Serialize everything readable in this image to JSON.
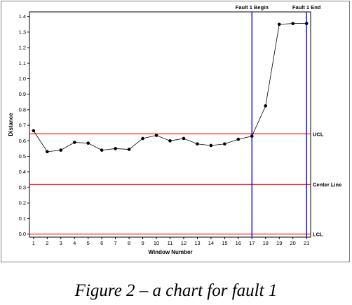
{
  "caption": "Figure 2 – a chart for fault 1",
  "chart_data": {
    "type": "line",
    "title": "",
    "xlabel": "Window Number",
    "ylabel": "Distance",
    "x": [
      1,
      2,
      3,
      4,
      5,
      6,
      7,
      8,
      9,
      10,
      11,
      12,
      13,
      14,
      15,
      16,
      17,
      18,
      19,
      20,
      21
    ],
    "series": [
      {
        "values": [
          0.665,
          0.53,
          0.54,
          0.59,
          0.585,
          0.54,
          0.55,
          0.545,
          0.615,
          0.635,
          0.6,
          0.615,
          0.58,
          0.57,
          0.58,
          0.61,
          0.63,
          0.825,
          1.35,
          1.355,
          1.355
        ]
      }
    ],
    "xlim": [
      0.7,
      21.3
    ],
    "ylim": [
      -0.02,
      1.43
    ],
    "yticks": [
      "0.0",
      "0.1",
      "0.2",
      "0.3",
      "0.4",
      "0.5",
      "0.6",
      "0.7",
      "0.8",
      "0.9",
      "1.0",
      "1.1",
      "1.2",
      "1.3",
      "1.4"
    ],
    "xticks": [
      "1",
      "2",
      "3",
      "4",
      "5",
      "6",
      "7",
      "8",
      "9",
      "10",
      "11",
      "12",
      "13",
      "14",
      "15",
      "16",
      "17",
      "18",
      "19",
      "20",
      "21"
    ],
    "horizontal_lines": [
      {
        "label": "UCL",
        "value": 0.645,
        "color": "#ff0000"
      },
      {
        "label": "Center Line",
        "value": 0.32,
        "color": "#ff0000"
      },
      {
        "label": "LCL",
        "value": 0.0,
        "color": "#ff0000"
      }
    ],
    "vertical_lines": [
      {
        "label": "Fault 1 Begin",
        "x": 17,
        "color": "#0000ff"
      },
      {
        "label": "Fault 1 End",
        "x": 21,
        "color": "#0000ff"
      }
    ],
    "line_color": "#000000",
    "marker_color": "#000000",
    "grid": false
  }
}
